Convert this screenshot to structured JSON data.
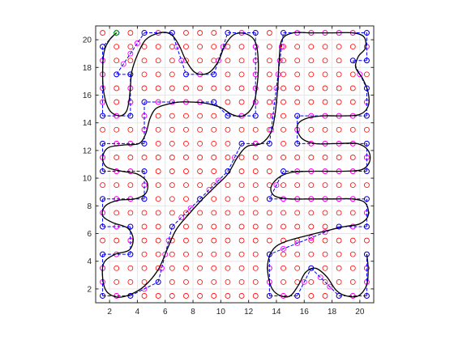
{
  "chart_data": {
    "type": "scatter",
    "title": "",
    "xlabel": "",
    "ylabel": "",
    "xlim": [
      1,
      21
    ],
    "ylim": [
      1,
      21
    ],
    "grid": true,
    "box": true,
    "x_ticks": [
      2,
      4,
      6,
      8,
      10,
      12,
      14,
      16,
      18,
      20
    ],
    "x_tick_labels": [
      "2",
      "4",
      "6",
      "8",
      "10",
      "12",
      "14",
      "16",
      "18",
      "20"
    ],
    "y_ticks": [
      2,
      4,
      6,
      8,
      10,
      12,
      14,
      16,
      18,
      20
    ],
    "y_tick_labels": [
      "2",
      "4",
      "6",
      "8",
      "10",
      "12",
      "14",
      "16",
      "18",
      "20"
    ],
    "colors": {
      "grid_point": "#ff0000",
      "visited_point": "#ff00ff",
      "turn_point": "#0000ff",
      "segment": "#0000ff",
      "curve": "#000000",
      "start": "#00cc00",
      "axis": "#262626",
      "grid": "#e6e6e6"
    },
    "grid_points": {
      "x_from": 1.5,
      "x_to": 20.5,
      "y_from": 1.5,
      "y_to": 20.5,
      "step": 1
    },
    "start_point": {
      "x": 2.5,
      "y": 20.5
    },
    "path_nodes": [
      [
        2.5,
        20.5
      ],
      [
        1.5,
        19.5
      ],
      [
        1.5,
        14.5
      ],
      [
        3.5,
        14.5
      ],
      [
        3.5,
        17.5
      ],
      [
        2.5,
        17.5
      ],
      [
        4.5,
        20.5
      ],
      [
        6.5,
        20.5
      ],
      [
        7.5,
        17.5
      ],
      [
        9.5,
        17.5
      ],
      [
        10.5,
        20.5
      ],
      [
        12.5,
        20.5
      ],
      [
        12.5,
        14.5
      ],
      [
        10.5,
        14.5
      ],
      [
        9.5,
        15.5
      ],
      [
        4.5,
        15.5
      ],
      [
        4.5,
        12.5
      ],
      [
        1.5,
        12.5
      ],
      [
        1.5,
        10.5
      ],
      [
        4.5,
        10.5
      ],
      [
        4.5,
        8.5
      ],
      [
        1.5,
        8.5
      ],
      [
        1.5,
        6.5
      ],
      [
        3.5,
        6.5
      ],
      [
        3.5,
        4.5
      ],
      [
        1.5,
        4.5
      ],
      [
        1.5,
        1.5
      ],
      [
        3.5,
        1.5
      ],
      [
        5.5,
        2.5
      ],
      [
        6.5,
        6.5
      ],
      [
        8.5,
        8.5
      ],
      [
        10.5,
        10.5
      ],
      [
        11.5,
        12.5
      ],
      [
        13.5,
        12.5
      ],
      [
        14.5,
        20.5
      ],
      [
        20.5,
        20.5
      ],
      [
        20.5,
        18.5
      ],
      [
        19.5,
        18.5
      ],
      [
        20.5,
        16.5
      ],
      [
        20.5,
        14.5
      ],
      [
        15.5,
        14.5
      ],
      [
        15.5,
        12.5
      ],
      [
        20.5,
        12.5
      ],
      [
        20.5,
        10.5
      ],
      [
        14.5,
        10.5
      ],
      [
        13.5,
        8.5
      ],
      [
        20.5,
        8.5
      ],
      [
        20.5,
        6.5
      ],
      [
        18.5,
        6.5
      ],
      [
        13.5,
        4.5
      ],
      [
        13.5,
        1.5
      ],
      [
        15.5,
        1.5
      ],
      [
        16.5,
        3.5
      ],
      [
        18.5,
        1.5
      ],
      [
        20.5,
        1.5
      ],
      [
        20.5,
        4.5
      ]
    ],
    "curve": [
      [
        2.5,
        20.5
      ],
      [
        2.0,
        20.0
      ],
      [
        1.6,
        19.1
      ],
      [
        1.5,
        17.5
      ],
      [
        1.6,
        16.1
      ],
      [
        2.0,
        14.9
      ],
      [
        2.7,
        14.5
      ],
      [
        3.2,
        14.8
      ],
      [
        3.4,
        15.6
      ],
      [
        3.5,
        16.6
      ],
      [
        3.6,
        17.7
      ],
      [
        4.0,
        18.9
      ],
      [
        4.6,
        20.0
      ],
      [
        5.6,
        20.5
      ],
      [
        6.4,
        20.4
      ],
      [
        7.0,
        19.6
      ],
      [
        7.5,
        18.5
      ],
      [
        8.2,
        17.6
      ],
      [
        9.1,
        17.6
      ],
      [
        9.8,
        18.4
      ],
      [
        10.3,
        19.6
      ],
      [
        11.0,
        20.4
      ],
      [
        11.9,
        20.4
      ],
      [
        12.5,
        19.8
      ],
      [
        12.7,
        18.3
      ],
      [
        12.6,
        16.6
      ],
      [
        12.3,
        15.2
      ],
      [
        11.6,
        14.5
      ],
      [
        10.8,
        14.6
      ],
      [
        10.0,
        15.1
      ],
      [
        9.0,
        15.4
      ],
      [
        8.0,
        15.5
      ],
      [
        7.0,
        15.5
      ],
      [
        6.0,
        15.3
      ],
      [
        5.3,
        15.0
      ],
      [
        4.9,
        14.3
      ],
      [
        4.6,
        13.2
      ],
      [
        4.1,
        12.5
      ],
      [
        3.0,
        12.4
      ],
      [
        1.9,
        12.2
      ],
      [
        1.5,
        11.5
      ],
      [
        1.8,
        10.8
      ],
      [
        2.9,
        10.5
      ],
      [
        4.0,
        10.3
      ],
      [
        4.7,
        9.7
      ],
      [
        4.6,
        8.9
      ],
      [
        3.8,
        8.5
      ],
      [
        2.6,
        8.4
      ],
      [
        1.7,
        8.0
      ],
      [
        1.5,
        7.3
      ],
      [
        2.2,
        6.8
      ],
      [
        3.3,
        6.4
      ],
      [
        3.7,
        5.6
      ],
      [
        3.4,
        4.8
      ],
      [
        2.4,
        4.5
      ],
      [
        1.6,
        3.9
      ],
      [
        1.5,
        2.8
      ],
      [
        1.8,
        1.8
      ],
      [
        2.6,
        1.4
      ],
      [
        3.5,
        1.6
      ],
      [
        4.5,
        2.2
      ],
      [
        5.5,
        3.4
      ],
      [
        6.2,
        5.0
      ],
      [
        6.8,
        6.3
      ],
      [
        7.7,
        7.4
      ],
      [
        8.6,
        8.4
      ],
      [
        9.6,
        9.4
      ],
      [
        10.5,
        10.3
      ],
      [
        11.2,
        11.5
      ],
      [
        11.9,
        12.3
      ],
      [
        12.9,
        12.5
      ],
      [
        13.6,
        13.3
      ],
      [
        13.9,
        14.6
      ],
      [
        14.1,
        16.6
      ],
      [
        14.2,
        18.6
      ],
      [
        14.4,
        20.0
      ],
      [
        15.2,
        20.5
      ],
      [
        16.5,
        20.5
      ],
      [
        18.0,
        20.5
      ],
      [
        19.5,
        20.5
      ],
      [
        20.3,
        20.2
      ],
      [
        20.4,
        19.4
      ],
      [
        19.9,
        18.8
      ],
      [
        19.7,
        18.0
      ],
      [
        20.2,
        17.2
      ],
      [
        20.6,
        16.2
      ],
      [
        20.6,
        15.2
      ],
      [
        20.0,
        14.6
      ],
      [
        18.8,
        14.5
      ],
      [
        17.3,
        14.5
      ],
      [
        16.1,
        14.3
      ],
      [
        15.5,
        13.8
      ],
      [
        15.8,
        12.9
      ],
      [
        16.8,
        12.5
      ],
      [
        18.3,
        12.5
      ],
      [
        19.8,
        12.5
      ],
      [
        20.6,
        12.0
      ],
      [
        20.7,
        11.2
      ],
      [
        20.1,
        10.6
      ],
      [
        18.5,
        10.5
      ],
      [
        16.5,
        10.5
      ],
      [
        15.0,
        10.4
      ],
      [
        14.1,
        10.0
      ],
      [
        13.6,
        9.3
      ],
      [
        13.9,
        8.7
      ],
      [
        15.0,
        8.5
      ],
      [
        16.5,
        8.5
      ],
      [
        18.0,
        8.5
      ],
      [
        19.5,
        8.5
      ],
      [
        20.4,
        8.2
      ],
      [
        20.6,
        7.3
      ],
      [
        20.0,
        6.7
      ],
      [
        18.9,
        6.5
      ],
      [
        17.6,
        6.2
      ],
      [
        16.0,
        5.8
      ],
      [
        14.6,
        5.4
      ],
      [
        13.8,
        4.9
      ],
      [
        13.4,
        4.0
      ],
      [
        13.4,
        3.0
      ],
      [
        13.7,
        2.0
      ],
      [
        14.3,
        1.5
      ],
      [
        15.0,
        1.5
      ],
      [
        15.6,
        2.3
      ],
      [
        16.1,
        3.2
      ],
      [
        16.8,
        3.5
      ],
      [
        17.6,
        2.9
      ],
      [
        18.3,
        1.9
      ],
      [
        19.0,
        1.5
      ],
      [
        19.9,
        1.5
      ],
      [
        20.5,
        2.3
      ],
      [
        20.6,
        3.5
      ],
      [
        20.5,
        4.5
      ]
    ]
  }
}
